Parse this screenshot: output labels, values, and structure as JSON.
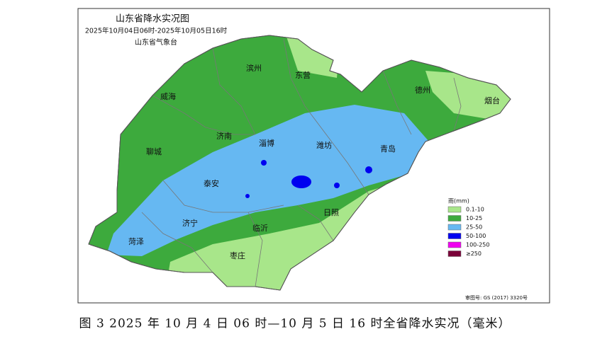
{
  "map": {
    "title": "山东省降水实况图",
    "period": "2025年10月04日06时-2025年10月05日16时",
    "agency": "山东省气象台",
    "cities": [
      "滨州",
      "东营",
      "德州",
      "烟台",
      "威海",
      "济南",
      "淄博",
      "潍坊",
      "青岛",
      "聊城",
      "泰安",
      "济宁",
      "日照",
      "临沂",
      "菏泽",
      "枣庄"
    ],
    "legend": {
      "title": "雨(mm)",
      "items": [
        {
          "label": "0.1-10",
          "color": "#a8e68a"
        },
        {
          "label": "10-25",
          "color": "#3daa3d"
        },
        {
          "label": "25-50",
          "color": "#66b8f2"
        },
        {
          "label": "50-100",
          "color": "#0000f0"
        },
        {
          "label": "100-250",
          "color": "#f000f0"
        },
        {
          "label": "≥250",
          "color": "#7a0038"
        }
      ]
    },
    "approval": "审图号: GS (2017) 3320号",
    "caption": "图 3 2025 年 10 月 4 日 06 时—10 月 5 日 16 时全省降水实况（毫米）"
  }
}
